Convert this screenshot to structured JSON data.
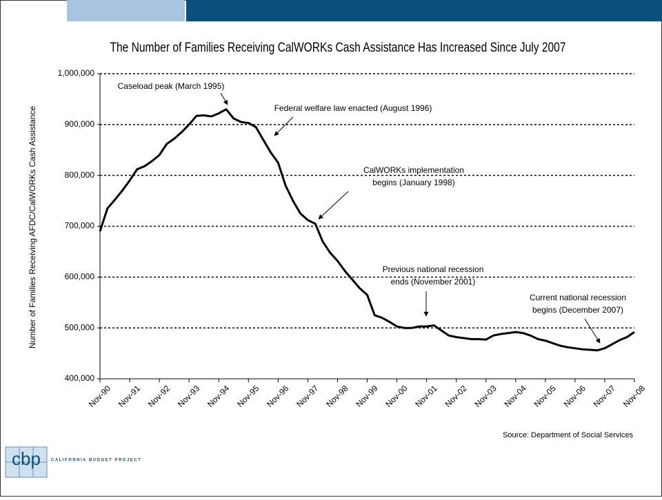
{
  "chart_data": {
    "type": "line",
    "title": "The Number of Families Receiving CalWORKs Cash Assistance Has Increased Since July 2007",
    "y_label": "Number of Families Receiving AFDC/CalWORKs Cash Assistance",
    "source": "Source: Department of Social Services",
    "categories": [
      "Nov-90",
      null,
      null,
      null,
      "Nov-91",
      null,
      null,
      null,
      "Nov-92",
      null,
      null,
      null,
      "Nov-93",
      null,
      null,
      null,
      "Nov-94",
      null,
      null,
      null,
      "Nov-95",
      null,
      null,
      null,
      "Nov-96",
      null,
      null,
      null,
      "Nov-97",
      null,
      null,
      null,
      "Nov-98",
      null,
      null,
      null,
      "Nov-99",
      null,
      null,
      null,
      "Nov-00",
      null,
      null,
      null,
      "Nov-01",
      null,
      null,
      null,
      "Nov-02",
      null,
      null,
      null,
      "Nov-03",
      null,
      null,
      null,
      "Nov-04",
      null,
      null,
      null,
      "Nov-05",
      null,
      null,
      null,
      "Nov-06",
      null,
      null,
      null,
      "Nov-07",
      null,
      null,
      null,
      "Nov-08"
    ],
    "series": [
      {
        "color": "#000000",
        "values": [
          690000,
          735000,
          752000,
          770000,
          790000,
          812000,
          818000,
          828000,
          840000,
          862000,
          872000,
          885000,
          900000,
          917000,
          918000,
          916000,
          922000,
          930000,
          912000,
          905000,
          903000,
          895000,
          870000,
          845000,
          825000,
          780000,
          750000,
          725000,
          712000,
          705000,
          670000,
          648000,
          632000,
          612000,
          595000,
          578000,
          565000,
          525000,
          520000,
          512000,
          503000,
          500000,
          500000,
          503000,
          503000,
          505000,
          495000,
          485000,
          482000,
          480000,
          478000,
          478000,
          477000,
          485000,
          488000,
          490000,
          492000,
          490000,
          485000,
          478000,
          475000,
          470000,
          465000,
          462000,
          460000,
          458000,
          457000,
          456000,
          460000,
          468000,
          476000,
          482000,
          492000
        ]
      }
    ],
    "ylim": [
      400000,
      1000000
    ],
    "yticks": [
      {
        "value": 400000,
        "label": "400,000"
      },
      {
        "value": 500000,
        "label": "500,000"
      },
      {
        "value": 600000,
        "label": "600,000"
      },
      {
        "value": 700000,
        "label": "700,000"
      },
      {
        "value": 800000,
        "label": "800,000"
      },
      {
        "value": 900000,
        "label": "900,000"
      },
      {
        "value": 1000000,
        "label": "1,000,000"
      }
    ],
    "grid": true,
    "annotations": [
      {
        "lines": [
          "Caseload peak (March 1995)"
        ]
      },
      {
        "lines": [
          "Federal welfare law enacted (August 1996)"
        ]
      },
      {
        "lines": [
          "CalWORKs implementation",
          "begins (January 1998)"
        ]
      },
      {
        "lines": [
          "Previous national recession",
          "ends (November 2001)"
        ]
      },
      {
        "lines": [
          "Current national recession",
          "begins (December 2007)"
        ]
      }
    ]
  },
  "logo": {
    "mark": "cbp",
    "name": "CALIFORNIA BUDGET PROJECT"
  }
}
